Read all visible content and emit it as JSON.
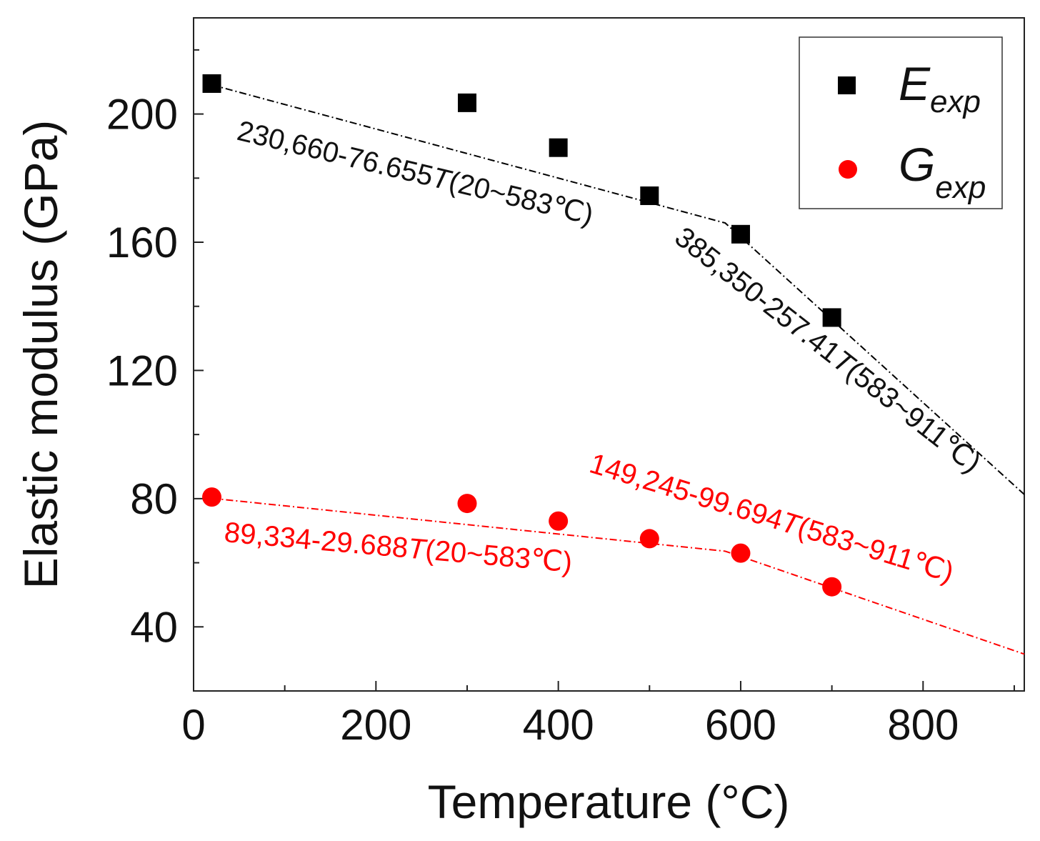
{
  "chart_data": {
    "type": "scatter",
    "xlabel": "Temperature (°C)",
    "ylabel": "Elastic modulus (GPa)",
    "xlim": [
      0,
      911
    ],
    "ylim": [
      20,
      230
    ],
    "xticks": [
      0,
      200,
      400,
      600,
      800
    ],
    "yticks": [
      40,
      80,
      120,
      160,
      200
    ],
    "x_minor_step": 100,
    "y_minor_step": 20,
    "grid": false,
    "legend_position": "top-right",
    "series": [
      {
        "name": "E_exp",
        "legend_main": "E",
        "legend_sub": "exp",
        "marker": "square",
        "color": "#000000",
        "x": [
          20,
          300,
          400,
          500,
          600,
          700
        ],
        "y": [
          209.5,
          203.5,
          189.5,
          174.5,
          162.5,
          136.5
        ]
      },
      {
        "name": "G_exp",
        "legend_main": "G",
        "legend_sub": "exp",
        "marker": "circle",
        "color": "#ff0000",
        "x": [
          20,
          300,
          400,
          500,
          600,
          700
        ],
        "y": [
          80.5,
          78.5,
          73,
          67.5,
          63,
          52.5
        ]
      }
    ],
    "fit_lines": [
      {
        "series": "E_exp",
        "color": "#000000",
        "points": [
          [
            20,
            209.1
          ],
          [
            583,
            166.0
          ],
          [
            911,
            81.3
          ]
        ]
      },
      {
        "series": "G_exp",
        "color": "#ff0000",
        "points": [
          [
            20,
            80.1
          ],
          [
            583,
            63.6
          ],
          [
            911,
            31.5
          ]
        ]
      }
    ],
    "annotations": [
      {
        "series": "E_exp",
        "color": "#111111",
        "pre": "230,660-76.655",
        "var": "T",
        "post": "(20~583℃)"
      },
      {
        "series": "E_exp",
        "color": "#111111",
        "pre": "385,350-257.41",
        "var": "T",
        "post": "(583~911℃)"
      },
      {
        "series": "G_exp",
        "color": "#ff0000",
        "pre": "89,334-29.688",
        "var": "T",
        "post": "(20~583℃)"
      },
      {
        "series": "G_exp",
        "color": "#ff0000",
        "pre": "149,245-99.694",
        "var": "T",
        "post": "(583~911℃)"
      }
    ]
  }
}
